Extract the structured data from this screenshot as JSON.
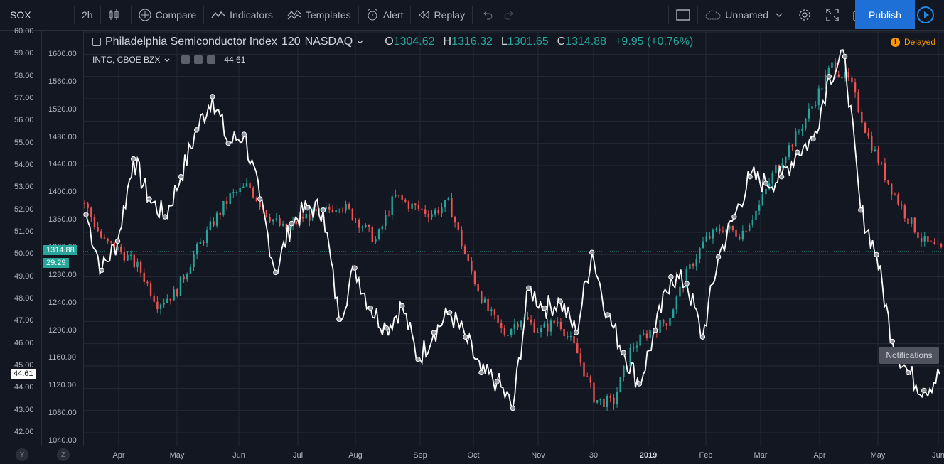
{
  "toolbar": {
    "symbol": "SOX",
    "interval": "2h",
    "compare": "Compare",
    "indicators": "Indicators",
    "templates": "Templates",
    "alert": "Alert",
    "replay": "Replay",
    "layout_name": "Unnamed",
    "publish": "Publish"
  },
  "legend": {
    "title": "Philadelphia Semiconductor Index",
    "interval": "120",
    "exchange": "NASDAQ",
    "o_label": "O",
    "o": "1304.62",
    "h_label": "H",
    "h": "1316.32",
    "l_label": "L",
    "l": "1301.65",
    "c_label": "C",
    "c": "1314.88",
    "change": "+9.95 (+0.76%)",
    "compare_symbol": "INTC, CBOE BZX",
    "compare_value": "44.61"
  },
  "status": {
    "delayed": "Delayed",
    "notifications": "Notifications"
  },
  "badges": {
    "price": "1314.88",
    "countdown": "29:29",
    "compare_price": "44.61"
  },
  "bottom": {
    "y_button": "Y",
    "z_button": "Z"
  },
  "colors": {
    "up": "#26a69a",
    "down": "#ef5350",
    "line": "#ffffff",
    "accent": "#1e6fd6",
    "delayed": "#ff9800"
  },
  "chart_data": {
    "type": "line",
    "series": [
      {
        "name": "INTC, CBOE BZX",
        "style": "line",
        "points": [
          [
            "Mar 27",
            51.8
          ],
          [
            "Apr 5",
            49.3
          ],
          [
            "Apr 12",
            50.6
          ],
          [
            "Apr 20",
            54.3
          ],
          [
            "Apr 28",
            52.5
          ],
          [
            "May 8",
            51.7
          ],
          [
            "May 18",
            53.5
          ],
          [
            "May 28",
            55.6
          ],
          [
            "Jun 1",
            57.1
          ],
          [
            "Jun 8",
            55.0
          ],
          [
            "Jun 15",
            55.4
          ],
          [
            "Jun 22",
            52.5
          ],
          [
            "Jul 1",
            49.2
          ],
          [
            "Jul 10",
            51.4
          ],
          [
            "Jul 20",
            52.1
          ],
          [
            "Jul 28",
            52.0
          ],
          [
            "Aug 1",
            47.1
          ],
          [
            "Aug 10",
            49.4
          ],
          [
            "Aug 20",
            47.6
          ],
          [
            "Aug 30",
            46.7
          ],
          [
            "Sep 7",
            47.7
          ],
          [
            "Sep 15",
            45.3
          ],
          [
            "Sep 25",
            46.5
          ],
          [
            "Oct 1",
            47.4
          ],
          [
            "Oct 10",
            46.3
          ],
          [
            "Oct 17",
            44.7
          ],
          [
            "Oct 24",
            44.3
          ],
          [
            "Oct 25",
            43.1
          ],
          [
            "Nov 1",
            48.5
          ],
          [
            "Nov 10",
            47.6
          ],
          [
            "Nov 20",
            47.9
          ],
          [
            "Nov 28",
            46.5
          ],
          [
            "Nov 30",
            50.1
          ],
          [
            "Dec 8",
            47.3
          ],
          [
            "Dec 15",
            45.6
          ],
          [
            "Dec 24",
            44.2
          ],
          [
            "Jan 2",
            46.6
          ],
          [
            "Jan 10",
            49.0
          ],
          [
            "Jan 20",
            48.7
          ],
          [
            "Jan 28",
            46.3
          ],
          [
            "Feb 5",
            49.9
          ],
          [
            "Feb 15",
            51.7
          ],
          [
            "Feb 25",
            53.5
          ],
          [
            "Mar 5",
            53.2
          ],
          [
            "Mar 15",
            53.5
          ],
          [
            "Mar 25",
            54.6
          ],
          [
            "Apr 5",
            55.2
          ],
          [
            "Apr 15",
            58.0
          ],
          [
            "Apr 24",
            58.9
          ],
          [
            "Apr 26",
            52.0
          ],
          [
            "May 5",
            50.0
          ],
          [
            "May 10",
            46.1
          ],
          [
            "May 15",
            44.7
          ],
          [
            "May 22",
            43.9
          ],
          [
            "May 31",
            44.61
          ]
        ]
      },
      {
        "name": "Philadelphia Semiconductor Index",
        "style": "candles",
        "points": [
          [
            "Mar 27",
            1385
          ],
          [
            "Apr 5",
            1330
          ],
          [
            "Apr 15",
            1315
          ],
          [
            "Apr 20",
            1290
          ],
          [
            "Apr 30",
            1240
          ],
          [
            "May 10",
            1255
          ],
          [
            "May 20",
            1310
          ],
          [
            "May 28",
            1355
          ],
          [
            "Jun 5",
            1395
          ],
          [
            "Jun 15",
            1410
          ],
          [
            "Jun 25",
            1370
          ],
          [
            "Jul 5",
            1345
          ],
          [
            "Jul 15",
            1365
          ],
          [
            "Jul 25",
            1370
          ],
          [
            "Aug 5",
            1385
          ],
          [
            "Aug 15",
            1360
          ],
          [
            "Aug 25",
            1330
          ],
          [
            "Sep 1",
            1395
          ],
          [
            "Sep 10",
            1380
          ],
          [
            "Sep 20",
            1370
          ],
          [
            "Oct 1",
            1385
          ],
          [
            "Oct 10",
            1300
          ],
          [
            "Oct 20",
            1235
          ],
          [
            "Oct 30",
            1195
          ],
          [
            "Nov 10",
            1220
          ],
          [
            "Nov 20",
            1200
          ],
          [
            "Nov 30",
            1215
          ],
          [
            "Dec 10",
            1170
          ],
          [
            "Dec 20",
            1100
          ],
          [
            "Dec 26",
            1095
          ],
          [
            "Jan 5",
            1175
          ],
          [
            "Jan 15",
            1200
          ],
          [
            "Jan 25",
            1215
          ],
          [
            "Feb 5",
            1280
          ],
          [
            "Feb 15",
            1330
          ],
          [
            "Feb 25",
            1350
          ],
          [
            "Mar 5",
            1340
          ],
          [
            "Mar 15",
            1380
          ],
          [
            "Mar 25",
            1440
          ],
          [
            "Apr 5",
            1480
          ],
          [
            "Apr 15",
            1530
          ],
          [
            "Apr 24",
            1585
          ],
          [
            "May 1",
            1560
          ],
          [
            "May 8",
            1480
          ],
          [
            "May 15",
            1420
          ],
          [
            "May 22",
            1370
          ],
          [
            "May 27",
            1330
          ],
          [
            "May 31",
            1314.88
          ]
        ]
      }
    ],
    "x_ticks": [
      "Apr",
      "May",
      "Jun",
      "Jul",
      "Aug",
      "Sep",
      "Oct",
      "Nov",
      "30",
      "2019",
      "Feb",
      "Mar",
      "Apr",
      "May",
      "Jun"
    ],
    "y_left_ticks": [
      "60.00",
      "59.00",
      "58.00",
      "57.00",
      "56.00",
      "55.00",
      "54.00",
      "53.00",
      "52.00",
      "51.00",
      "50.00",
      "49.00",
      "48.00",
      "47.00",
      "46.00",
      "45.00",
      "44.00",
      "43.00",
      "42.00"
    ],
    "y_right_ticks": [
      "1600.00",
      "1560.00",
      "1520.00",
      "1480.00",
      "1440.00",
      "1400.00",
      "1360.00",
      "1320.00",
      "1280.00",
      "1240.00",
      "1200.00",
      "1160.00",
      "1120.00",
      "1080.00",
      "1040.00"
    ],
    "ylim_left": [
      42,
      60
    ],
    "ylim_right": [
      1040,
      1600
    ],
    "grid": true
  }
}
